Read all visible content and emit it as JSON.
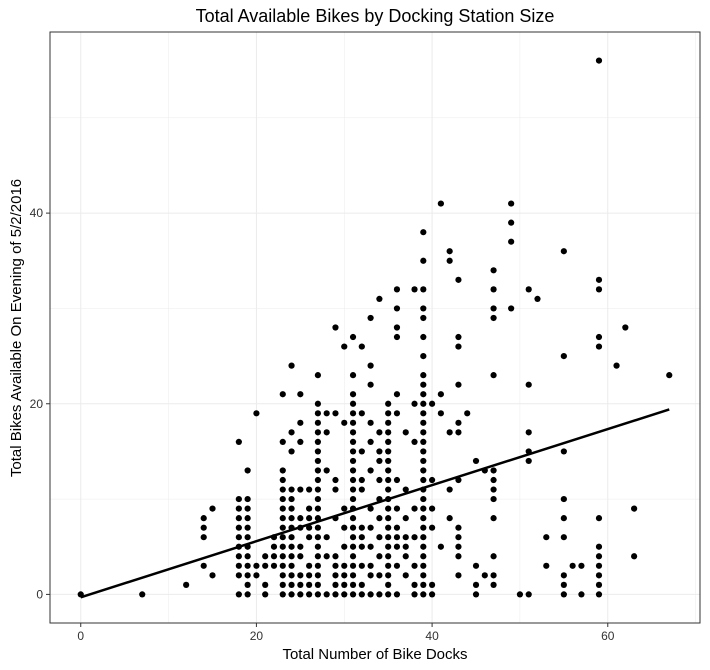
{
  "chart_data": {
    "type": "scatter",
    "title": "Total Available Bikes by Docking Station Size",
    "xlabel": "Total Number of Bike Docks",
    "ylabel": "Total Bikes Available On Evening of 5/2/2016",
    "xlim": [
      -3.5,
      70.5
    ],
    "ylim": [
      -3,
      59
    ],
    "x_ticks": [
      0,
      20,
      40,
      60
    ],
    "y_ticks": [
      0,
      20,
      40
    ],
    "grid": true,
    "point_color": "#000000",
    "background": "#ffffff",
    "grid_color": "#ebebeb",
    "trendline": {
      "x": [
        0,
        67
      ],
      "y": [
        -0.3,
        19.4
      ],
      "color": "#000000"
    },
    "points": [
      [
        0,
        0
      ],
      [
        7,
        0
      ],
      [
        12,
        1
      ],
      [
        14,
        3
      ],
      [
        14,
        6
      ],
      [
        14,
        7
      ],
      [
        14,
        8
      ],
      [
        15,
        2
      ],
      [
        15,
        9
      ],
      [
        18,
        0
      ],
      [
        18,
        2
      ],
      [
        18,
        3
      ],
      [
        18,
        4
      ],
      [
        18,
        5
      ],
      [
        18,
        6
      ],
      [
        18,
        7
      ],
      [
        18,
        8
      ],
      [
        18,
        9
      ],
      [
        18,
        10
      ],
      [
        18,
        16
      ],
      [
        19,
        0
      ],
      [
        19,
        1
      ],
      [
        19,
        2
      ],
      [
        19,
        3
      ],
      [
        19,
        4
      ],
      [
        19,
        5
      ],
      [
        19,
        6
      ],
      [
        19,
        7
      ],
      [
        19,
        8
      ],
      [
        19,
        9
      ],
      [
        19,
        10
      ],
      [
        19,
        13
      ],
      [
        20,
        2
      ],
      [
        20,
        3
      ],
      [
        20,
        19
      ],
      [
        21,
        3
      ],
      [
        21,
        4
      ],
      [
        21,
        1
      ],
      [
        21,
        0
      ],
      [
        22,
        3
      ],
      [
        22,
        4
      ],
      [
        22,
        6
      ],
      [
        22,
        5
      ],
      [
        23,
        0
      ],
      [
        23,
        1
      ],
      [
        23,
        2
      ],
      [
        23,
        3
      ],
      [
        23,
        4
      ],
      [
        23,
        5
      ],
      [
        23,
        6
      ],
      [
        23,
        7
      ],
      [
        23,
        8
      ],
      [
        23,
        9
      ],
      [
        23,
        10
      ],
      [
        23,
        11
      ],
      [
        23,
        12
      ],
      [
        23,
        13
      ],
      [
        23,
        16
      ],
      [
        23,
        21
      ],
      [
        24,
        0
      ],
      [
        24,
        1
      ],
      [
        24,
        2
      ],
      [
        24,
        3
      ],
      [
        24,
        4
      ],
      [
        24,
        5
      ],
      [
        24,
        6
      ],
      [
        24,
        7
      ],
      [
        24,
        8
      ],
      [
        24,
        9
      ],
      [
        24,
        10
      ],
      [
        24,
        11
      ],
      [
        24,
        15
      ],
      [
        24,
        17
      ],
      [
        24,
        24
      ],
      [
        25,
        0
      ],
      [
        25,
        1
      ],
      [
        25,
        2
      ],
      [
        25,
        4
      ],
      [
        25,
        5
      ],
      [
        25,
        7
      ],
      [
        25,
        8
      ],
      [
        25,
        11
      ],
      [
        25,
        16
      ],
      [
        25,
        18
      ],
      [
        25,
        21
      ],
      [
        26,
        0
      ],
      [
        26,
        1
      ],
      [
        26,
        2
      ],
      [
        26,
        3
      ],
      [
        26,
        6
      ],
      [
        26,
        7
      ],
      [
        26,
        8
      ],
      [
        26,
        9
      ],
      [
        26,
        11
      ],
      [
        27,
        0
      ],
      [
        27,
        1
      ],
      [
        27,
        2
      ],
      [
        27,
        3
      ],
      [
        27,
        4
      ],
      [
        27,
        5
      ],
      [
        27,
        6
      ],
      [
        27,
        7
      ],
      [
        27,
        8
      ],
      [
        27,
        9
      ],
      [
        27,
        10
      ],
      [
        27,
        11
      ],
      [
        27,
        12
      ],
      [
        27,
        13
      ],
      [
        27,
        14
      ],
      [
        27,
        15
      ],
      [
        27,
        16
      ],
      [
        27,
        17
      ],
      [
        27,
        18
      ],
      [
        27,
        19
      ],
      [
        27,
        20
      ],
      [
        27,
        23
      ],
      [
        28,
        0
      ],
      [
        28,
        4
      ],
      [
        28,
        6
      ],
      [
        28,
        13
      ],
      [
        28,
        17
      ],
      [
        28,
        19
      ],
      [
        29,
        0
      ],
      [
        29,
        1
      ],
      [
        29,
        2
      ],
      [
        29,
        3
      ],
      [
        29,
        4
      ],
      [
        29,
        8
      ],
      [
        29,
        11
      ],
      [
        29,
        12
      ],
      [
        29,
        19
      ],
      [
        29,
        28
      ],
      [
        30,
        0
      ],
      [
        30,
        1
      ],
      [
        30,
        2
      ],
      [
        30,
        3
      ],
      [
        30,
        5
      ],
      [
        30,
        7
      ],
      [
        30,
        9
      ],
      [
        30,
        18
      ],
      [
        30,
        26
      ],
      [
        31,
        0
      ],
      [
        31,
        1
      ],
      [
        31,
        2
      ],
      [
        31,
        3
      ],
      [
        31,
        4
      ],
      [
        31,
        5
      ],
      [
        31,
        6
      ],
      [
        31,
        7
      ],
      [
        31,
        8
      ],
      [
        31,
        9
      ],
      [
        31,
        10
      ],
      [
        31,
        11
      ],
      [
        31,
        12
      ],
      [
        31,
        13
      ],
      [
        31,
        14
      ],
      [
        31,
        15
      ],
      [
        31,
        16
      ],
      [
        31,
        17
      ],
      [
        31,
        18
      ],
      [
        31,
        19
      ],
      [
        31,
        20
      ],
      [
        31,
        21
      ],
      [
        31,
        23
      ],
      [
        31,
        27
      ],
      [
        32,
        0
      ],
      [
        32,
        1
      ],
      [
        32,
        3
      ],
      [
        32,
        5
      ],
      [
        32,
        6
      ],
      [
        32,
        7
      ],
      [
        32,
        11
      ],
      [
        32,
        12
      ],
      [
        32,
        15
      ],
      [
        32,
        19
      ],
      [
        32,
        26
      ],
      [
        33,
        0
      ],
      [
        33,
        2
      ],
      [
        33,
        3
      ],
      [
        33,
        5
      ],
      [
        33,
        7
      ],
      [
        33,
        9
      ],
      [
        33,
        13
      ],
      [
        33,
        16
      ],
      [
        33,
        18
      ],
      [
        33,
        22
      ],
      [
        33,
        24
      ],
      [
        33,
        29
      ],
      [
        34,
        0
      ],
      [
        34,
        2
      ],
      [
        34,
        4
      ],
      [
        34,
        6
      ],
      [
        34,
        8
      ],
      [
        34,
        10
      ],
      [
        34,
        12
      ],
      [
        34,
        14
      ],
      [
        34,
        15
      ],
      [
        34,
        17
      ],
      [
        34,
        31
      ],
      [
        35,
        0
      ],
      [
        35,
        1
      ],
      [
        35,
        2
      ],
      [
        35,
        3
      ],
      [
        35,
        4
      ],
      [
        35,
        5
      ],
      [
        35,
        6
      ],
      [
        35,
        7
      ],
      [
        35,
        8
      ],
      [
        35,
        9
      ],
      [
        35,
        10
      ],
      [
        35,
        11
      ],
      [
        35,
        12
      ],
      [
        35,
        13
      ],
      [
        35,
        14
      ],
      [
        35,
        15
      ],
      [
        35,
        16
      ],
      [
        35,
        17
      ],
      [
        35,
        18
      ],
      [
        35,
        19
      ],
      [
        35,
        20
      ],
      [
        36,
        0
      ],
      [
        36,
        3
      ],
      [
        36,
        5
      ],
      [
        36,
        6
      ],
      [
        36,
        7
      ],
      [
        36,
        9
      ],
      [
        36,
        12
      ],
      [
        36,
        19
      ],
      [
        36,
        21
      ],
      [
        36,
        27
      ],
      [
        36,
        28
      ],
      [
        36,
        30
      ],
      [
        36,
        32
      ],
      [
        37,
        2
      ],
      [
        37,
        4
      ],
      [
        37,
        5
      ],
      [
        37,
        6
      ],
      [
        37,
        8
      ],
      [
        37,
        11
      ],
      [
        37,
        17
      ],
      [
        38,
        0
      ],
      [
        38,
        1
      ],
      [
        38,
        3
      ],
      [
        38,
        6
      ],
      [
        38,
        9
      ],
      [
        38,
        16
      ],
      [
        38,
        20
      ],
      [
        38,
        32
      ],
      [
        39,
        0
      ],
      [
        39,
        1
      ],
      [
        39,
        2
      ],
      [
        39,
        3
      ],
      [
        39,
        4
      ],
      [
        39,
        5
      ],
      [
        39,
        6
      ],
      [
        39,
        7
      ],
      [
        39,
        8
      ],
      [
        39,
        9
      ],
      [
        39,
        10
      ],
      [
        39,
        11
      ],
      [
        39,
        12
      ],
      [
        39,
        13
      ],
      [
        39,
        14
      ],
      [
        39,
        15
      ],
      [
        39,
        16
      ],
      [
        39,
        17
      ],
      [
        39,
        18
      ],
      [
        39,
        19
      ],
      [
        39,
        20
      ],
      [
        39,
        21
      ],
      [
        39,
        22
      ],
      [
        39,
        23
      ],
      [
        39,
        25
      ],
      [
        39,
        27
      ],
      [
        39,
        29
      ],
      [
        39,
        30
      ],
      [
        39,
        32
      ],
      [
        39,
        35
      ],
      [
        39,
        38
      ],
      [
        40,
        0
      ],
      [
        40,
        1
      ],
      [
        40,
        7
      ],
      [
        40,
        20
      ],
      [
        40,
        9
      ],
      [
        40,
        12
      ],
      [
        41,
        5
      ],
      [
        41,
        19
      ],
      [
        41,
        21
      ],
      [
        41,
        41
      ],
      [
        42,
        8
      ],
      [
        42,
        11
      ],
      [
        42,
        17
      ],
      [
        42,
        35
      ],
      [
        42,
        36
      ],
      [
        43,
        2
      ],
      [
        43,
        4
      ],
      [
        43,
        5
      ],
      [
        43,
        6
      ],
      [
        43,
        7
      ],
      [
        43,
        12
      ],
      [
        43,
        17
      ],
      [
        43,
        18
      ],
      [
        43,
        22
      ],
      [
        43,
        26
      ],
      [
        43,
        27
      ],
      [
        43,
        33
      ],
      [
        44,
        19
      ],
      [
        45,
        0
      ],
      [
        45,
        1
      ],
      [
        45,
        3
      ],
      [
        45,
        14
      ],
      [
        46,
        2
      ],
      [
        46,
        13
      ],
      [
        47,
        1
      ],
      [
        47,
        2
      ],
      [
        47,
        4
      ],
      [
        47,
        8
      ],
      [
        47,
        10
      ],
      [
        47,
        11
      ],
      [
        47,
        12
      ],
      [
        47,
        13
      ],
      [
        47,
        23
      ],
      [
        47,
        29
      ],
      [
        47,
        30
      ],
      [
        47,
        32
      ],
      [
        47,
        34
      ],
      [
        49,
        30
      ],
      [
        49,
        37
      ],
      [
        49,
        39
      ],
      [
        49,
        41
      ],
      [
        50,
        0
      ],
      [
        51,
        0
      ],
      [
        51,
        14
      ],
      [
        51,
        15
      ],
      [
        51,
        17
      ],
      [
        51,
        22
      ],
      [
        51,
        32
      ],
      [
        52,
        31
      ],
      [
        53,
        3
      ],
      [
        53,
        6
      ],
      [
        55,
        0
      ],
      [
        55,
        1
      ],
      [
        55,
        2
      ],
      [
        55,
        6
      ],
      [
        55,
        8
      ],
      [
        55,
        10
      ],
      [
        55,
        15
      ],
      [
        55,
        25
      ],
      [
        55,
        36
      ],
      [
        56,
        3
      ],
      [
        57,
        0
      ],
      [
        57,
        3
      ],
      [
        59,
        0
      ],
      [
        59,
        1
      ],
      [
        59,
        2
      ],
      [
        59,
        3
      ],
      [
        59,
        4
      ],
      [
        59,
        5
      ],
      [
        59,
        8
      ],
      [
        59,
        26
      ],
      [
        59,
        27
      ],
      [
        59,
        32
      ],
      [
        59,
        33
      ],
      [
        59,
        56
      ],
      [
        61,
        24
      ],
      [
        62,
        28
      ],
      [
        63,
        4
      ],
      [
        63,
        9
      ],
      [
        67,
        23
      ]
    ]
  }
}
